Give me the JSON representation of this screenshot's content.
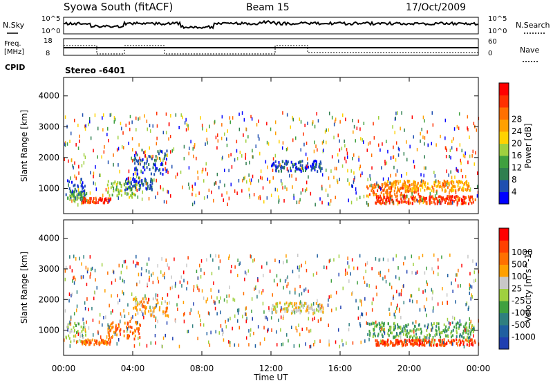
{
  "header": {
    "title": "Syowa South (fitACF)",
    "beam": "Beam 15",
    "date": "17/Oct/2009"
  },
  "noise_panel": {
    "left_label": "N.Sky",
    "right_label": "N.Search",
    "ticks_left": [
      "10^5",
      "10^0"
    ],
    "ticks_right": [
      "10^5",
      "10^0"
    ]
  },
  "freq_panel": {
    "left_label_1": "Freq.",
    "left_label_2": "[MHz]",
    "ticks_left": [
      "18",
      "8"
    ],
    "ticks_right": [
      "60",
      "0"
    ],
    "right_label": "Nave"
  },
  "cpid": {
    "label": "CPID",
    "value": "Stereo -6401"
  },
  "colors": {
    "power": [
      "#0000ff",
      "#1f4fb0",
      "#2f7f4f",
      "#3fa03f",
      "#9fd03f",
      "#ffd200",
      "#ffa000",
      "#ff7000",
      "#ff3000",
      "#ff0000"
    ],
    "velocity": [
      "#1f3fb0",
      "#1f5fa0",
      "#2f7f7f",
      "#3fa03f",
      "#9fd03f",
      "#c8c8c8",
      "#ffa000",
      "#ff7000",
      "#ff4000",
      "#ff0000"
    ]
  },
  "chart_data": [
    {
      "type": "heatmap",
      "name": "power",
      "ylabel": "Slant Range [km]",
      "yticks": [
        1000,
        2000,
        3000,
        4000
      ],
      "ylim": [
        180,
        4600
      ],
      "xlim": [
        0,
        24
      ],
      "colorbar_label": "Power [dB]",
      "colorbar_ticks": [
        "4",
        "8",
        "12",
        "16",
        "20",
        "24",
        "28"
      ],
      "colorbar_range": [
        0,
        30
      ],
      "patches": [
        {
          "t": [
            0.1,
            1.2
          ],
          "r": [
            550,
            1250
          ],
          "bin": 1
        },
        {
          "t": [
            0.2,
            1.3
          ],
          "r": [
            550,
            850
          ],
          "bin": 3
        },
        {
          "t": [
            1.0,
            2.7
          ],
          "r": [
            480,
            650
          ],
          "bin": 8
        },
        {
          "t": [
            2.5,
            4.2
          ],
          "r": [
            650,
            1200
          ],
          "bin": 4
        },
        {
          "t": [
            3.5,
            5.2
          ],
          "r": [
            900,
            1300
          ],
          "bin": 1
        },
        {
          "t": [
            4.0,
            6.0
          ],
          "r": [
            1400,
            2200
          ],
          "bin": 1
        },
        {
          "t": [
            12.0,
            15.0
          ],
          "r": [
            1500,
            1850
          ],
          "bin": 1
        },
        {
          "t": [
            17.5,
            20.5
          ],
          "r": [
            700,
            1100
          ],
          "bin": 7
        },
        {
          "t": [
            18.0,
            23.8
          ],
          "r": [
            450,
            700
          ],
          "bin": 8
        },
        {
          "t": [
            18.5,
            23.5
          ],
          "r": [
            850,
            1200
          ],
          "bin": 6
        }
      ]
    },
    {
      "type": "heatmap",
      "name": "velocity",
      "ylabel": "Slant Range [km]",
      "yticks": [
        1000,
        2000,
        3000,
        4000
      ],
      "ylim": [
        180,
        4600
      ],
      "xlim": [
        0,
        24
      ],
      "xlabel": "Time UT",
      "xticks": [
        "00:00",
        "04:00",
        "08:00",
        "12:00",
        "16:00",
        "20:00",
        "00:00"
      ],
      "colorbar_label": "Velocity [m s^-1]",
      "colorbar_ticks": [
        "-1000",
        "-500",
        "-100",
        "-25",
        "25",
        "100",
        "500",
        "1000"
      ],
      "patches": [
        {
          "t": [
            0.1,
            1.3
          ],
          "r": [
            550,
            1200
          ],
          "bin": 4
        },
        {
          "t": [
            1.0,
            2.7
          ],
          "r": [
            480,
            650
          ],
          "bin": 7
        },
        {
          "t": [
            2.5,
            4.4
          ],
          "r": [
            650,
            1250
          ],
          "bin": 7
        },
        {
          "t": [
            4.0,
            6.0
          ],
          "r": [
            1400,
            2000
          ],
          "bin": 6
        },
        {
          "t": [
            12.0,
            15.0
          ],
          "r": [
            1500,
            1850
          ],
          "bin": 5
        },
        {
          "t": [
            17.5,
            23.8
          ],
          "r": [
            700,
            1200
          ],
          "bin": 3
        },
        {
          "t": [
            18.0,
            23.8
          ],
          "r": [
            450,
            650
          ],
          "bin": 8
        }
      ]
    }
  ]
}
